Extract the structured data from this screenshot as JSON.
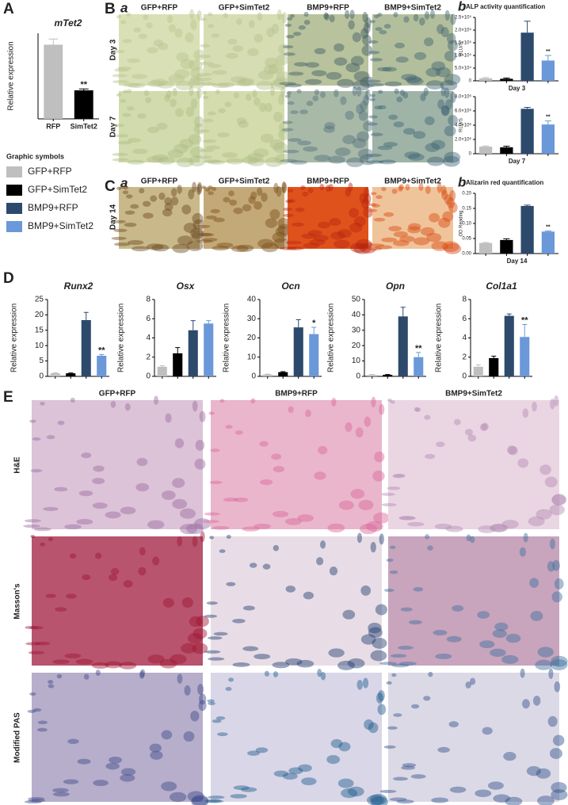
{
  "panels": {
    "A": "A",
    "B": "B",
    "C": "C",
    "D": "D",
    "E": "E",
    "Ba": "a",
    "Bb": "b",
    "Ca": "a",
    "Cb": "b"
  },
  "legend": {
    "title": "Graphic symbols",
    "items": [
      {
        "name": "GFP+RFP",
        "color": "#bfbfbf"
      },
      {
        "name": "GFP+SimTet2",
        "color": "#000000"
      },
      {
        "name": "BMP9+RFP",
        "color": "#2d4a6c"
      },
      {
        "name": "BMP9+SimTet2",
        "color": "#6b98d8"
      }
    ]
  },
  "staining": {
    "columns": [
      "GFP+RFP",
      "GFP+SimTet2",
      "BMP9+RFP",
      "BMP9+SimTet2"
    ],
    "rows": [
      "Day 3",
      "Day 7"
    ]
  },
  "alizarin": {
    "columns": [
      "GFP+RFP",
      "GFP+SimTet2",
      "BMP9+RFP",
      "BMP9+SimTet2"
    ],
    "rows": [
      "Day 14"
    ]
  },
  "histology": {
    "columns": [
      "GFP+RFP",
      "BMP9+RFP",
      "BMP9+SimTet2"
    ],
    "rows": [
      "H&E",
      "Masson's",
      "Modified PAS"
    ]
  },
  "chart_data": [
    {
      "type": "bar",
      "title": "mTet2",
      "y_label": "Relative expression",
      "categories": [
        "RFP",
        "SimTet2"
      ],
      "values": [
        2.6,
        1.0
      ],
      "errors": [
        0.2,
        0.05
      ],
      "markers": [
        null,
        "**"
      ],
      "colors": [
        "#bfbfbf",
        "#000000"
      ],
      "ylim": [
        0,
        3
      ]
    },
    {
      "type": "bar",
      "title": "ALP activity quantification",
      "y_label": "RLU/S",
      "x_label": "Day 3",
      "categories": [
        null,
        null,
        null,
        null
      ],
      "values": [
        10000,
        8000,
        190000,
        80000
      ],
      "errors": [
        3000,
        3000,
        45000,
        20000
      ],
      "markers": [
        null,
        null,
        null,
        "**"
      ],
      "colors": [
        "#bfbfbf",
        "#000000",
        "#2d4a6c",
        "#6b98d8"
      ],
      "ylim": [
        0,
        250000
      ],
      "yticks": [
        0,
        {
          "value": 50000,
          "label": "5.0×10⁴"
        },
        {
          "value": 100000,
          "label": "1.0×10⁵"
        },
        {
          "value": 150000,
          "label": "1.5×10⁵"
        },
        {
          "value": 200000,
          "label": "2.0×10⁵"
        },
        {
          "value": 250000,
          "label": "2.5×10⁵"
        }
      ]
    },
    {
      "type": "bar",
      "y_label": "RLU/S",
      "x_label": "Day 7",
      "categories": [
        null,
        null,
        null,
        null
      ],
      "values": [
        1000000,
        900000,
        6300000,
        4100000
      ],
      "errors": [
        100000,
        150000,
        200000,
        500000
      ],
      "markers": [
        null,
        null,
        null,
        "**"
      ],
      "colors": [
        "#bfbfbf",
        "#000000",
        "#2d4a6c",
        "#6b98d8"
      ],
      "ylim": [
        0,
        8000000
      ],
      "yticks": [
        0,
        {
          "value": 2000000,
          "label": "2.0×10⁶"
        },
        {
          "value": 4000000,
          "label": "4.0×10⁶"
        },
        {
          "value": 6000000,
          "label": "6.0×10⁶"
        },
        {
          "value": 8000000,
          "label": "8.0×10⁶"
        }
      ]
    },
    {
      "type": "bar",
      "title": "Alizarin red quantification",
      "y_label": "OD Reading",
      "x_label": "Day 14",
      "categories": [
        null,
        null,
        null,
        null
      ],
      "values": [
        0.035,
        0.045,
        0.158,
        0.073
      ],
      "errors": [
        0.002,
        0.004,
        0.003,
        0.002
      ],
      "markers": [
        null,
        null,
        null,
        "**"
      ],
      "colors": [
        "#bfbfbf",
        "#000000",
        "#2d4a6c",
        "#6b98d8"
      ],
      "ylim": [
        0,
        0.2
      ],
      "yticks": [
        {
          "value": 0,
          "label": "0.00"
        },
        {
          "value": 0.05,
          "label": "0.05"
        },
        {
          "value": 0.1,
          "label": "0.10"
        },
        {
          "value": 0.15,
          "label": "0.15"
        },
        {
          "value": 0.2,
          "label": "0.20"
        }
      ]
    },
    {
      "type": "bar",
      "title": "Runx2",
      "y_label": "Relative expression",
      "categories": [
        null,
        null,
        null,
        null
      ],
      "values": [
        1,
        1,
        18.3,
        6.7
      ],
      "errors": [
        0.2,
        0.1,
        2.5,
        0.4
      ],
      "markers": [
        null,
        null,
        null,
        "**"
      ],
      "colors": [
        "#bfbfbf",
        "#000000",
        "#2d4a6c",
        "#6b98d8"
      ],
      "ylim": [
        0,
        25
      ],
      "yticks": [
        0,
        5,
        10,
        15,
        20,
        25
      ]
    },
    {
      "type": "bar",
      "title": "Osx",
      "y_label": "Relative expression",
      "categories": [
        null,
        null,
        null,
        null
      ],
      "values": [
        1,
        2.4,
        4.8,
        5.5
      ],
      "errors": [
        0.1,
        0.6,
        1.0,
        0.3
      ],
      "markers": [
        null,
        null,
        null,
        null
      ],
      "colors": [
        "#bfbfbf",
        "#000000",
        "#2d4a6c",
        "#6b98d8"
      ],
      "ylim": [
        0,
        8
      ],
      "yticks": [
        0,
        2,
        4,
        6,
        8
      ]
    },
    {
      "type": "bar",
      "title": "Ocn",
      "y_label": "Relative expression",
      "categories": [
        null,
        null,
        null,
        null
      ],
      "values": [
        1,
        2.2,
        25.5,
        22
      ],
      "errors": [
        0.2,
        0.3,
        4,
        3.5
      ],
      "markers": [
        null,
        null,
        null,
        "*"
      ],
      "colors": [
        "#bfbfbf",
        "#000000",
        "#2d4a6c",
        "#6b98d8"
      ],
      "ylim": [
        0,
        40
      ],
      "yticks": [
        0,
        10,
        20,
        30,
        40
      ]
    },
    {
      "type": "bar",
      "title": "Opn",
      "y_label": "Relative expression",
      "categories": [
        null,
        null,
        null,
        null
      ],
      "values": [
        1,
        1,
        39,
        12.5
      ],
      "errors": [
        0.2,
        0.2,
        6,
        3
      ],
      "markers": [
        null,
        null,
        null,
        "**"
      ],
      "colors": [
        "#bfbfbf",
        "#000000",
        "#2d4a6c",
        "#6b98d8"
      ],
      "ylim": [
        0,
        50
      ],
      "yticks": [
        0,
        10,
        20,
        30,
        40,
        50
      ]
    },
    {
      "type": "bar",
      "title": "Col1a1",
      "y_label": "Relative expression",
      "categories": [
        null,
        null,
        null,
        null
      ],
      "values": [
        1,
        1.9,
        6.3,
        4.1
      ],
      "errors": [
        0.2,
        0.2,
        0.2,
        1.3
      ],
      "markers": [
        null,
        null,
        null,
        "**"
      ],
      "colors": [
        "#bfbfbf",
        "#000000",
        "#2d4a6c",
        "#6b98d8"
      ],
      "ylim": [
        0,
        8
      ],
      "yticks": [
        0,
        2,
        4,
        6,
        8
      ]
    }
  ]
}
